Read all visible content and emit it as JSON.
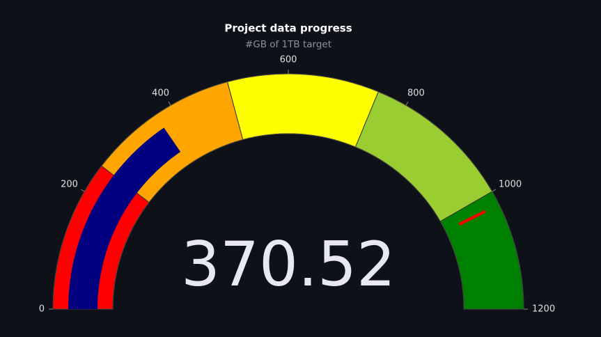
{
  "chart_data": {
    "type": "gauge",
    "title": "Project data progress",
    "subtitle": "#GB of 1TB target",
    "value": 370.52,
    "bar_color": "#000080",
    "ylim": [
      0,
      1200
    ],
    "yticks": [
      0,
      200,
      400,
      600,
      800,
      1000,
      1200
    ],
    "steps": [
      {
        "range": [
          0,
          250
        ],
        "color": "#ff0000"
      },
      {
        "range": [
          250,
          500
        ],
        "color": "#ffa500"
      },
      {
        "range": [
          500,
          750
        ],
        "color": "#ffff00"
      },
      {
        "range": [
          750,
          1000
        ],
        "color": "#9acd32"
      },
      {
        "range": [
          1000,
          1200
        ],
        "color": "#008000"
      }
    ],
    "threshold": {
      "value": 1024,
      "color": "#ff0000"
    }
  }
}
